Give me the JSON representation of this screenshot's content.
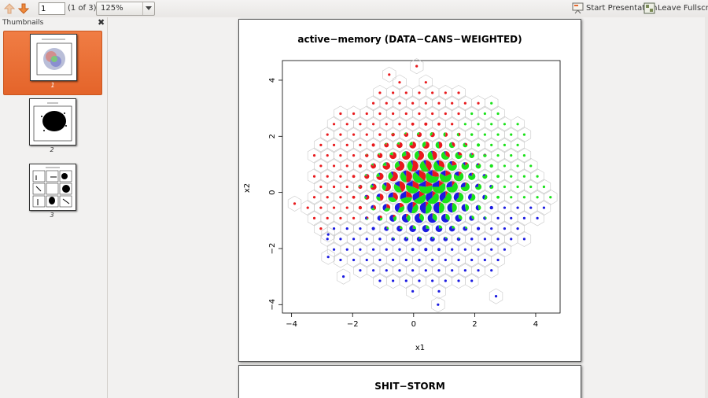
{
  "toolbar": {
    "page_value": "1",
    "page_of": "(1 of 3)",
    "zoom": "125%",
    "start_presentation": "Start Presentation",
    "leave_fullscreen": "Leave Fullscreen"
  },
  "sidebar": {
    "title": "Thumbnails",
    "items": [
      {
        "num": "1",
        "selected": true
      },
      {
        "num": "2",
        "selected": false
      },
      {
        "num": "3",
        "selected": false
      }
    ]
  },
  "pages": {
    "page2_title": "SHIT−STORM"
  },
  "colors": {
    "accent": "#e8692f",
    "red": "#e8191c",
    "green": "#19e219",
    "blue": "#1a1ae0"
  },
  "chart_data": {
    "type": "scatter",
    "title": "active−memory (DATA−CANS−WEIGHTED)",
    "xlabel": "x1",
    "ylabel": "x2",
    "xlim": [
      -4.3,
      4.8
    ],
    "ylim": [
      -4.3,
      4.7
    ],
    "xticks": [
      "−4",
      "−2",
      "0",
      "2",
      "4"
    ],
    "xtick_values": [
      -4,
      -2,
      0,
      2,
      4
    ],
    "yticks": [
      "−4",
      "−2",
      "0",
      "2",
      "4"
    ],
    "ytick_values": [
      -4,
      -2,
      0,
      2,
      4
    ],
    "hexbin": {
      "cell_width": 0.43,
      "center": [
        0.4,
        0.2
      ],
      "spread": 2.4,
      "series": [
        {
          "name": "red",
          "color": "#e8191c",
          "center": [
            -0.5,
            1.4
          ]
        },
        {
          "name": "green",
          "color": "#19e219",
          "center": [
            0.8,
            0.3
          ]
        },
        {
          "name": "blue",
          "color": "#1a1ae0",
          "center": [
            0.8,
            -1.2
          ]
        }
      ],
      "outliers": [
        [
          -3.9,
          -0.4
        ],
        [
          -2.8,
          -1.5
        ],
        [
          -2.8,
          -2.3
        ],
        [
          -2.3,
          -3.0
        ],
        [
          0.8,
          -4.0
        ],
        [
          2.7,
          -3.7
        ],
        [
          -0.8,
          4.2
        ],
        [
          0.1,
          4.5
        ]
      ]
    }
  }
}
